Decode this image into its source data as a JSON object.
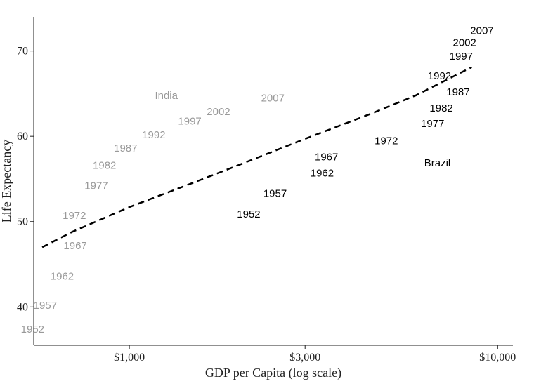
{
  "chart_data": {
    "type": "scatter",
    "title": "",
    "xlabel": "GDP per Capita (log scale)",
    "ylabel": "Life Expectancy",
    "x_scale": "log10",
    "xlim": [
      550,
      11000
    ],
    "ylim": [
      35.5,
      74
    ],
    "x_ticks": [
      {
        "value": 1000,
        "label": "$1,000"
      },
      {
        "value": 3000,
        "label": "$3,000"
      },
      {
        "value": 10000,
        "label": "$10,000"
      }
    ],
    "y_ticks": [
      {
        "value": 40,
        "label": "40"
      },
      {
        "value": 50,
        "label": "50"
      },
      {
        "value": 60,
        "label": "60"
      },
      {
        "value": 70,
        "label": "70"
      }
    ],
    "grid": false,
    "series": [
      {
        "name": "India",
        "color": "#999999",
        "name_label": {
          "text": "India",
          "x": 1260,
          "y": 64.8
        },
        "points": [
          {
            "label": "1952",
            "x": 546,
            "y": 37.4
          },
          {
            "label": "1957",
            "x": 591,
            "y": 40.2
          },
          {
            "label": "1962",
            "x": 657,
            "y": 43.6
          },
          {
            "label": "1967",
            "x": 713,
            "y": 47.2
          },
          {
            "label": "1972",
            "x": 709,
            "y": 50.7
          },
          {
            "label": "1977",
            "x": 813,
            "y": 54.2
          },
          {
            "label": "1982",
            "x": 856,
            "y": 56.6
          },
          {
            "label": "1987",
            "x": 977,
            "y": 58.6
          },
          {
            "label": "1992",
            "x": 1165,
            "y": 60.2
          },
          {
            "label": "1997",
            "x": 1459,
            "y": 61.8
          },
          {
            "label": "2002",
            "x": 1746,
            "y": 62.9
          },
          {
            "label": "2007",
            "x": 2452,
            "y": 64.5
          }
        ]
      },
      {
        "name": "Brazil",
        "color": "#000000",
        "name_label": {
          "text": "Brazil",
          "x": 6860,
          "y": 56.9
        },
        "points": [
          {
            "label": "1952",
            "x": 2109,
            "y": 50.9
          },
          {
            "label": "1957",
            "x": 2487,
            "y": 53.3
          },
          {
            "label": "1962",
            "x": 3337,
            "y": 55.7
          },
          {
            "label": "1967",
            "x": 3430,
            "y": 57.6
          },
          {
            "label": "1972",
            "x": 4985,
            "y": 59.5
          },
          {
            "label": "1977",
            "x": 6660,
            "y": 61.5
          },
          {
            "label": "1982",
            "x": 7031,
            "y": 63.3
          },
          {
            "label": "1987",
            "x": 7807,
            "y": 65.2
          },
          {
            "label": "1992",
            "x": 6950,
            "y": 67.1
          },
          {
            "label": "1997",
            "x": 7958,
            "y": 69.4
          },
          {
            "label": "2002",
            "x": 8131,
            "y": 71.0
          },
          {
            "label": "2007",
            "x": 9066,
            "y": 72.4
          }
        ]
      }
    ],
    "trend_line": {
      "style": "dashed",
      "color": "#000000",
      "points": [
        [
          580,
          47.0
        ],
        [
          700,
          48.8
        ],
        [
          1000,
          51.7
        ],
        [
          1500,
          54.6
        ],
        [
          2000,
          56.7
        ],
        [
          3000,
          59.7
        ],
        [
          4500,
          62.6
        ],
        [
          6000,
          64.8
        ],
        [
          8500,
          68.1
        ]
      ]
    }
  }
}
